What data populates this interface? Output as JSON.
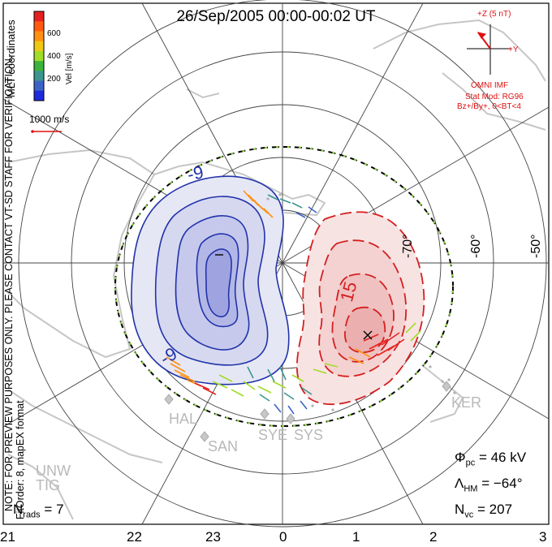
{
  "title": "26/Sep/2005 00:00-00:02 UT",
  "colorbar": {
    "label": "Vel [m/s]",
    "ticks": [
      "600",
      "400",
      "200"
    ],
    "colors": [
      "#e62020",
      "#ff5a10",
      "#ff9010",
      "#f0c814",
      "#a0dc28",
      "#3cb43c",
      "#3c9690",
      "#3c64c8",
      "#1e28dc"
    ]
  },
  "side_labels": {
    "coords": "MLT coordinates",
    "preview_note": "NOTE: FOR PREVIEW PURPOSES ONLY. PLEASE CONTACT VT-SD STAFF FOR VERIFICATION.",
    "fit_order": "FitOrder: 8, mapEX format"
  },
  "scale_vector": {
    "label": "1000 m/s"
  },
  "imf": {
    "z_label": "+Z (5 nT)",
    "y_label": "+Y",
    "source": "OMNI IMF",
    "model": "Stat Mod: RG96",
    "condition": "Bz+/By+, 0<BT<4",
    "color": "#e01010"
  },
  "contours": {
    "neg_label_1": "-9",
    "neg_label_2": "-9",
    "neg_min": "–",
    "pos_label": "15",
    "pos_max": "×",
    "neg_color": "#2233aa",
    "pos_color": "#d42020"
  },
  "lat_labels": [
    "-70°",
    "-60°",
    "-50°"
  ],
  "mlt_labels": [
    "21",
    "22",
    "23",
    "0",
    "1",
    "2",
    "3"
  ],
  "stations": [
    "HAL",
    "SAN",
    "SYE",
    "SYS",
    "KER",
    "UNW",
    "TIG"
  ],
  "stats": {
    "phi_pc": "= 46 kV",
    "lambda_hm": "= −64°",
    "n_vc": "= 207",
    "n_rads": "= 7"
  }
}
